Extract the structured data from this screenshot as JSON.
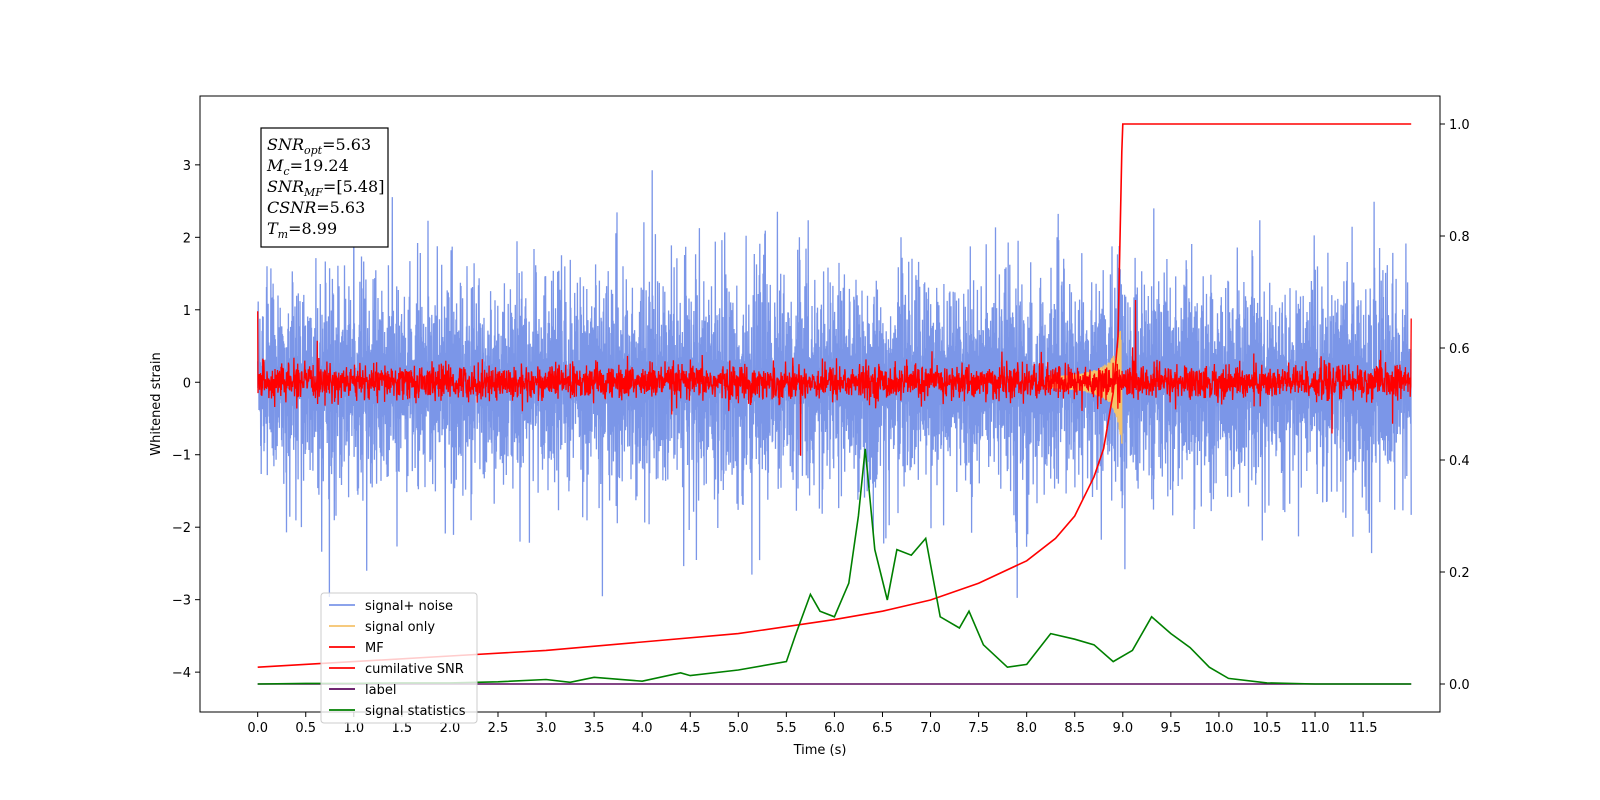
{
  "chart_data": {
    "type": "line",
    "xlabel": "Time (s)",
    "ylabel": "Whitened strain",
    "xlim": [
      -0.6,
      12.3
    ],
    "ylim": [
      -4.55,
      3.95
    ],
    "y2lim": [
      -0.05,
      1.05
    ],
    "xticks": [
      "0.0",
      "0.5",
      "1.0",
      "1.5",
      "2.0",
      "2.5",
      "3.0",
      "3.5",
      "4.0",
      "4.5",
      "5.0",
      "5.5",
      "6.0",
      "6.5",
      "7.0",
      "7.5",
      "8.0",
      "8.5",
      "9.0",
      "9.5",
      "10.0",
      "10.5",
      "11.0",
      "11.5"
    ],
    "yticks": [
      "3",
      "2",
      "1",
      "0",
      "−1",
      "−2",
      "−3",
      "−4"
    ],
    "y2ticks": [
      "1.0",
      "0.8",
      "0.6",
      "0.4",
      "0.2",
      "0.0"
    ],
    "legend_position": "lower-left",
    "annotation": {
      "lines": [
        {
          "sym": "SNR",
          "sub": "opt",
          "val": "=5.63"
        },
        {
          "sym": "M",
          "sub": "c",
          "val": "=19.24"
        },
        {
          "sym": "SNR",
          "sub": "MF",
          "val": "=[5.48]"
        },
        {
          "sym": "CSNR",
          "sub": "",
          "val": "=5.63"
        },
        {
          "sym": "T",
          "sub": "m",
          "val": "=8.99"
        }
      ]
    },
    "series": [
      {
        "name": "signal+ noise",
        "color": "#7b96e8",
        "axis": "left",
        "noise_sigma": 0.85,
        "x_range": [
          0,
          12.0
        ]
      },
      {
        "name": "signal only",
        "color": "#f5c36b",
        "axis": "left",
        "peak_time": 8.99,
        "peak_amplitude": 0.95
      },
      {
        "name": "MF",
        "color": "#ff0000",
        "axis": "left",
        "noise_sigma": 0.12,
        "x_range": [
          0,
          12.0
        ]
      },
      {
        "name": "cumilative SNR",
        "color": "#ff0000",
        "axis": "right",
        "x": [
          0.0,
          1.0,
          2.0,
          3.0,
          4.0,
          5.0,
          6.0,
          6.5,
          7.0,
          7.5,
          8.0,
          8.3,
          8.5,
          8.7,
          8.8,
          8.9,
          8.95,
          8.99,
          9.0,
          10.0,
          12.0
        ],
        "y": [
          0.03,
          0.04,
          0.05,
          0.06,
          0.075,
          0.09,
          0.115,
          0.13,
          0.15,
          0.18,
          0.22,
          0.26,
          0.3,
          0.37,
          0.42,
          0.52,
          0.62,
          0.95,
          1.0,
          1.0,
          1.0
        ]
      },
      {
        "name": "label",
        "color": "#5b0a5e",
        "axis": "right",
        "x": [
          0.0,
          12.0
        ],
        "y": [
          0.0,
          0.0
        ]
      },
      {
        "name": "signal statistics",
        "color": "#008000",
        "axis": "right",
        "x": [
          0.0,
          0.5,
          1.0,
          1.5,
          2.0,
          2.5,
          3.0,
          3.25,
          3.5,
          4.0,
          4.4,
          4.5,
          5.0,
          5.5,
          5.6,
          5.75,
          5.85,
          6.0,
          6.15,
          6.25,
          6.32,
          6.42,
          6.55,
          6.65,
          6.8,
          6.95,
          7.1,
          7.3,
          7.4,
          7.55,
          7.8,
          8.0,
          8.25,
          8.5,
          8.7,
          8.9,
          9.1,
          9.3,
          9.5,
          9.7,
          9.9,
          10.1,
          10.5,
          11.0,
          12.0
        ],
        "y": [
          0.0,
          0.001,
          0.001,
          0.002,
          0.002,
          0.004,
          0.008,
          0.003,
          0.012,
          0.005,
          0.02,
          0.015,
          0.025,
          0.04,
          0.09,
          0.16,
          0.13,
          0.12,
          0.18,
          0.3,
          0.42,
          0.24,
          0.15,
          0.24,
          0.23,
          0.26,
          0.12,
          0.1,
          0.13,
          0.07,
          0.03,
          0.035,
          0.09,
          0.08,
          0.07,
          0.04,
          0.06,
          0.12,
          0.09,
          0.065,
          0.03,
          0.01,
          0.002,
          0.0,
          0.0
        ]
      }
    ]
  }
}
